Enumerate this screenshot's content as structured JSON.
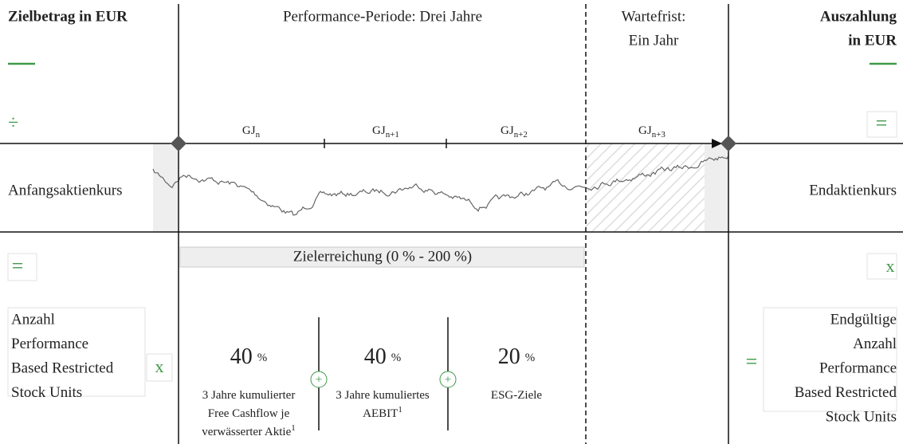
{
  "header": {
    "target": "Zielbetrag in EUR",
    "period": "Performance-Periode: Drei Jahre",
    "waiting": [
      "Wartefrist:",
      "Ein Jahr"
    ],
    "payout": [
      "Auszahlung",
      "in EUR"
    ]
  },
  "years": [
    {
      "label": "GJ",
      "sub": "n"
    },
    {
      "label": "GJ",
      "sub": "n+1"
    },
    {
      "label": "GJ",
      "sub": "n+2"
    },
    {
      "label": "GJ",
      "sub": "n+3"
    }
  ],
  "operators": {
    "left_divide": "÷",
    "left_equals": "=",
    "left_times": "x",
    "right_equals_top": "=",
    "right_times": "x",
    "right_equals_bottom": "=",
    "plus_1": "+",
    "plus_2": "+"
  },
  "prices": {
    "start": "Anfangsaktienkurs",
    "end": "Endaktienkurs"
  },
  "achievement": "Zielerreichung (0 % - 200 %)",
  "units_left": [
    "Anzahl",
    "Performance",
    "Based Restricted",
    "Stock Units"
  ],
  "units_right": [
    "Endgültige",
    "Anzahl",
    "Performance",
    "Based Restricted",
    "Stock Units"
  ],
  "targets": [
    {
      "weight": "40",
      "unit": "%",
      "lines": [
        "3 Jahre kumulierter",
        "Free Cashflow je",
        "verwässerter Aktie"
      ],
      "footnote": "1"
    },
    {
      "weight": "40",
      "unit": "%",
      "lines": [
        "3 Jahre kumuliertes",
        "AEBIT"
      ],
      "footnote": "1"
    },
    {
      "weight": "20",
      "unit": "%",
      "lines": [
        "ESG-Ziele"
      ]
    }
  ]
}
